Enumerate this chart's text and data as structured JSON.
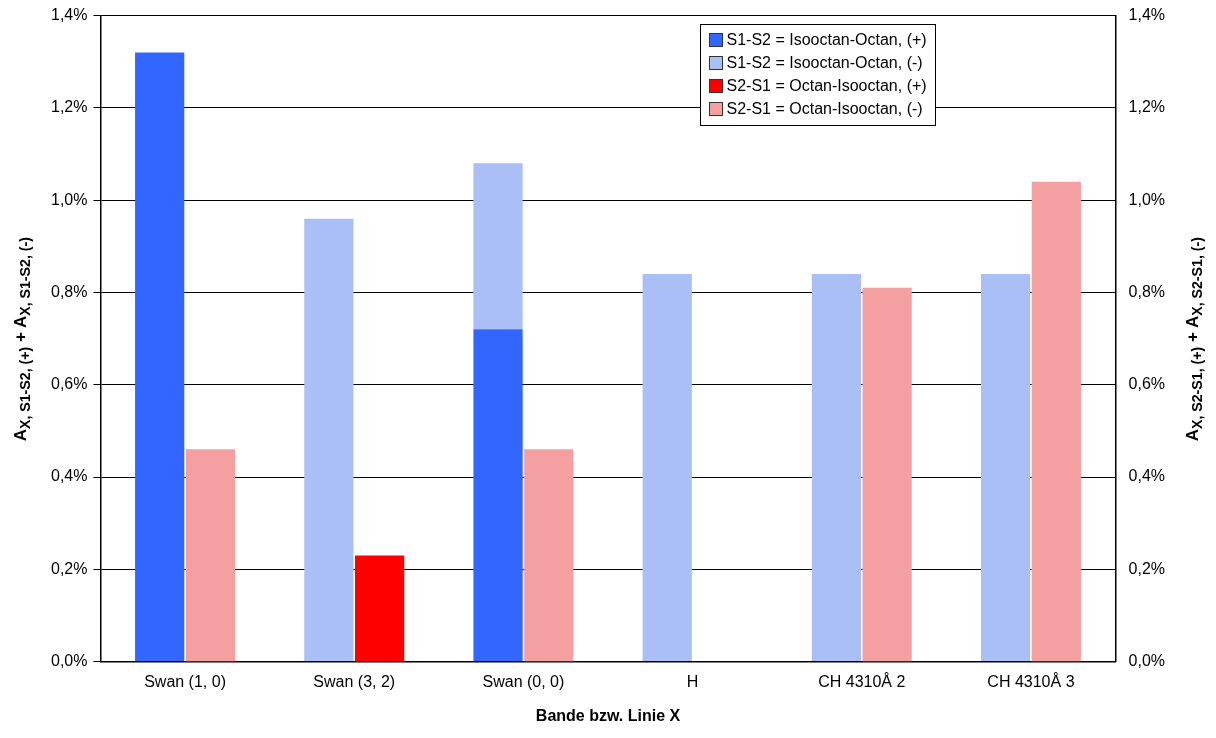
{
  "chart_data": {
    "type": "bar",
    "xlabel": "Bande bzw. Linie X",
    "ylabel": "A$_{X, S1-S2, (+)}$ + A$_{X, S1-S2, (-)}$",
    "y2label": "A$_{X, S2-S1, (+)}$ + A$_{X, S2-S1, (-)}$",
    "categories": [
      "Swan (1, 0)",
      "Swan (3, 2)",
      "Swan (0, 0)",
      "H",
      "CH 4310Å 2",
      "CH 4310Å 3"
    ],
    "stacked": true,
    "series": [
      {
        "name": "S1-S2 = Isooctan-Octan, (+)",
        "color": "#3366ff",
        "values": [
          1.32,
          null,
          0.72,
          null,
          null,
          null
        ]
      },
      {
        "name": "S1-S2 = Isooctan-Octan, (-)",
        "color": "#a9bff5",
        "values": [
          null,
          0.96,
          0.36,
          0.84,
          0.84,
          0.84
        ]
      },
      {
        "name": "S2-S1 = Octan-Isooctan, (+)",
        "color": "#ff0000",
        "axis": "y2",
        "values": [
          null,
          0.23,
          null,
          null,
          null,
          null
        ]
      },
      {
        "name": "S2-S1 = Octan-Isooctan, (-)",
        "color": "#f4a0a0",
        "axis": "y2",
        "values": [
          0.46,
          null,
          0.46,
          null,
          0.81,
          1.04
        ]
      }
    ],
    "ylim": [
      0,
      1.4
    ],
    "yticks": [
      {
        "value": 0,
        "label": "0,0%"
      },
      {
        "value": 0.2,
        "label": "0,2%"
      },
      {
        "value": 0.4,
        "label": "0,4%"
      },
      {
        "value": 0.6,
        "label": "0,6%"
      },
      {
        "value": 0.8,
        "label": "0,8%"
      },
      {
        "value": 1,
        "label": "1,0%"
      },
      {
        "value": 1.2,
        "label": "1,2%"
      },
      {
        "value": 1.4,
        "label": "1,4%"
      }
    ],
    "y2lim": [
      0,
      1.4
    ],
    "y2ticks": [
      {
        "value": 0,
        "label": "0,0%"
      },
      {
        "value": 0.2,
        "label": "0,2%"
      },
      {
        "value": 0.4,
        "label": "0,4%"
      },
      {
        "value": 0.6,
        "label": "0,6%"
      },
      {
        "value": 0.8,
        "label": "0,8%"
      },
      {
        "value": 1,
        "label": "1,0%"
      },
      {
        "value": 1.2,
        "label": "1,2%"
      },
      {
        "value": 1.4,
        "label": "1,4%"
      }
    ],
    "grid": "y",
    "legend": "top right"
  }
}
